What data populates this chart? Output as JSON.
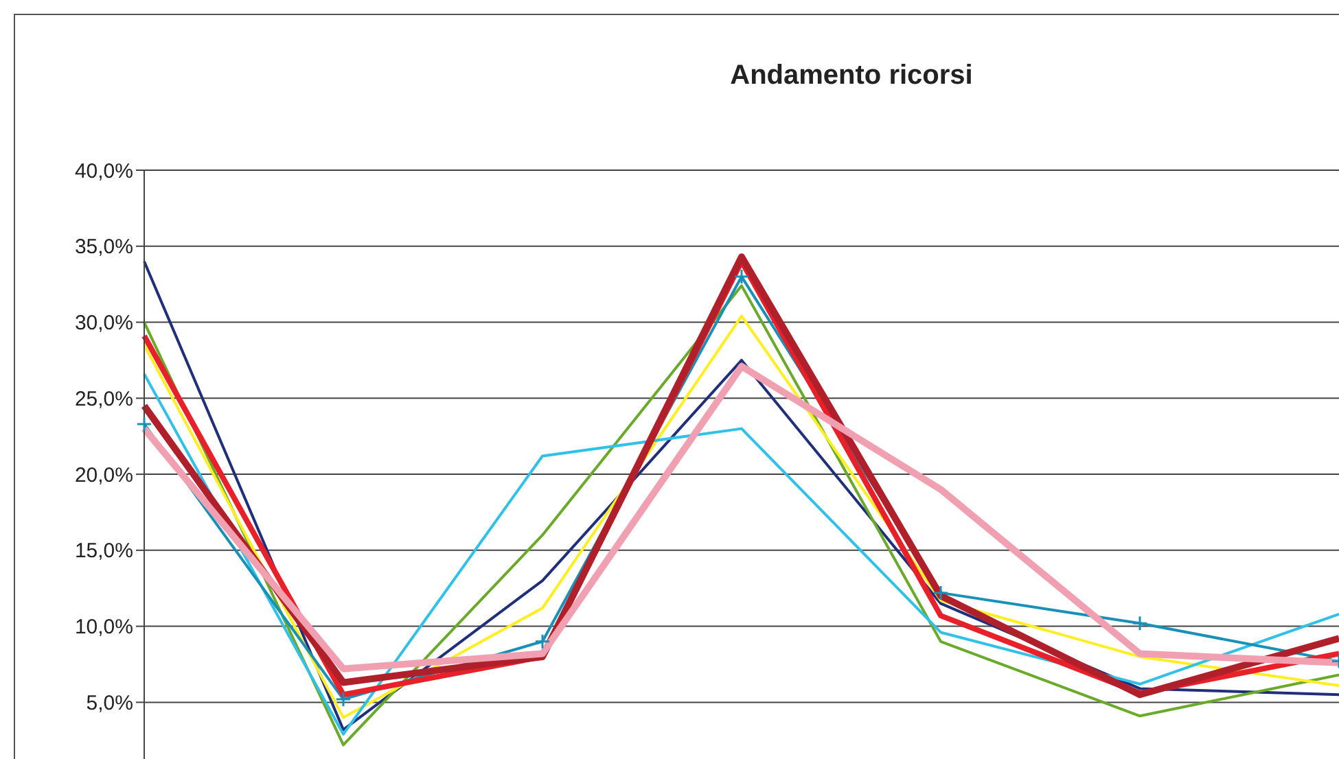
{
  "chart_data": {
    "type": "line",
    "title": "Andamento ricorsi",
    "categories": [
      null,
      null,
      null,
      null,
      null,
      null,
      null
    ],
    "series": [
      {
        "color": "#1f2f7a",
        "values": [
          34.0,
          3.2,
          13.0,
          27.5,
          11.5,
          5.9,
          5.5
        ]
      },
      {
        "color": "#6aaa2a",
        "values": [
          30.0,
          2.2,
          16.0,
          32.4,
          9.0,
          4.1,
          6.8
        ]
      },
      {
        "color": "#ffee22",
        "values": [
          28.5,
          4.0,
          11.2,
          30.4,
          11.7,
          8.0,
          6.1
        ]
      },
      {
        "color": "#30c0e8",
        "values": [
          26.6,
          2.9,
          21.2,
          23.0,
          9.6,
          6.2,
          10.8
        ]
      },
      {
        "color": "#1890b8",
        "values": [
          23.3,
          5.2,
          9.0,
          33.0,
          12.2,
          10.2,
          7.7
        ],
        "marker": "cross"
      },
      {
        "color": "#e8202a",
        "values": [
          29.1,
          5.5,
          8.0,
          34.0,
          10.7,
          5.6,
          8.2
        ]
      },
      {
        "color": "#b0202a",
        "values": [
          24.5,
          6.3,
          8.0,
          34.3,
          12.0,
          5.5,
          9.2
        ]
      },
      {
        "color": "#f0a0b0",
        "values": [
          23.0,
          7.2,
          8.2,
          27.1,
          19.0,
          8.2,
          7.6
        ]
      }
    ],
    "ylim": [
      1,
      40
    ],
    "yticks": [
      {
        "value": 5,
        "label": "5,0%"
      },
      {
        "value": 10,
        "label": "10,0%"
      },
      {
        "value": 15,
        "label": "15,0%"
      },
      {
        "value": 20,
        "label": "20,0%"
      },
      {
        "value": 25,
        "label": "25,0%"
      },
      {
        "value": 30,
        "label": "30,0%"
      },
      {
        "value": 35,
        "label": "35,0%"
      },
      {
        "value": 40,
        "label": "40,0%"
      }
    ],
    "grid": "y",
    "legend": false,
    "marker": "none",
    "tick_labels": "y"
  }
}
